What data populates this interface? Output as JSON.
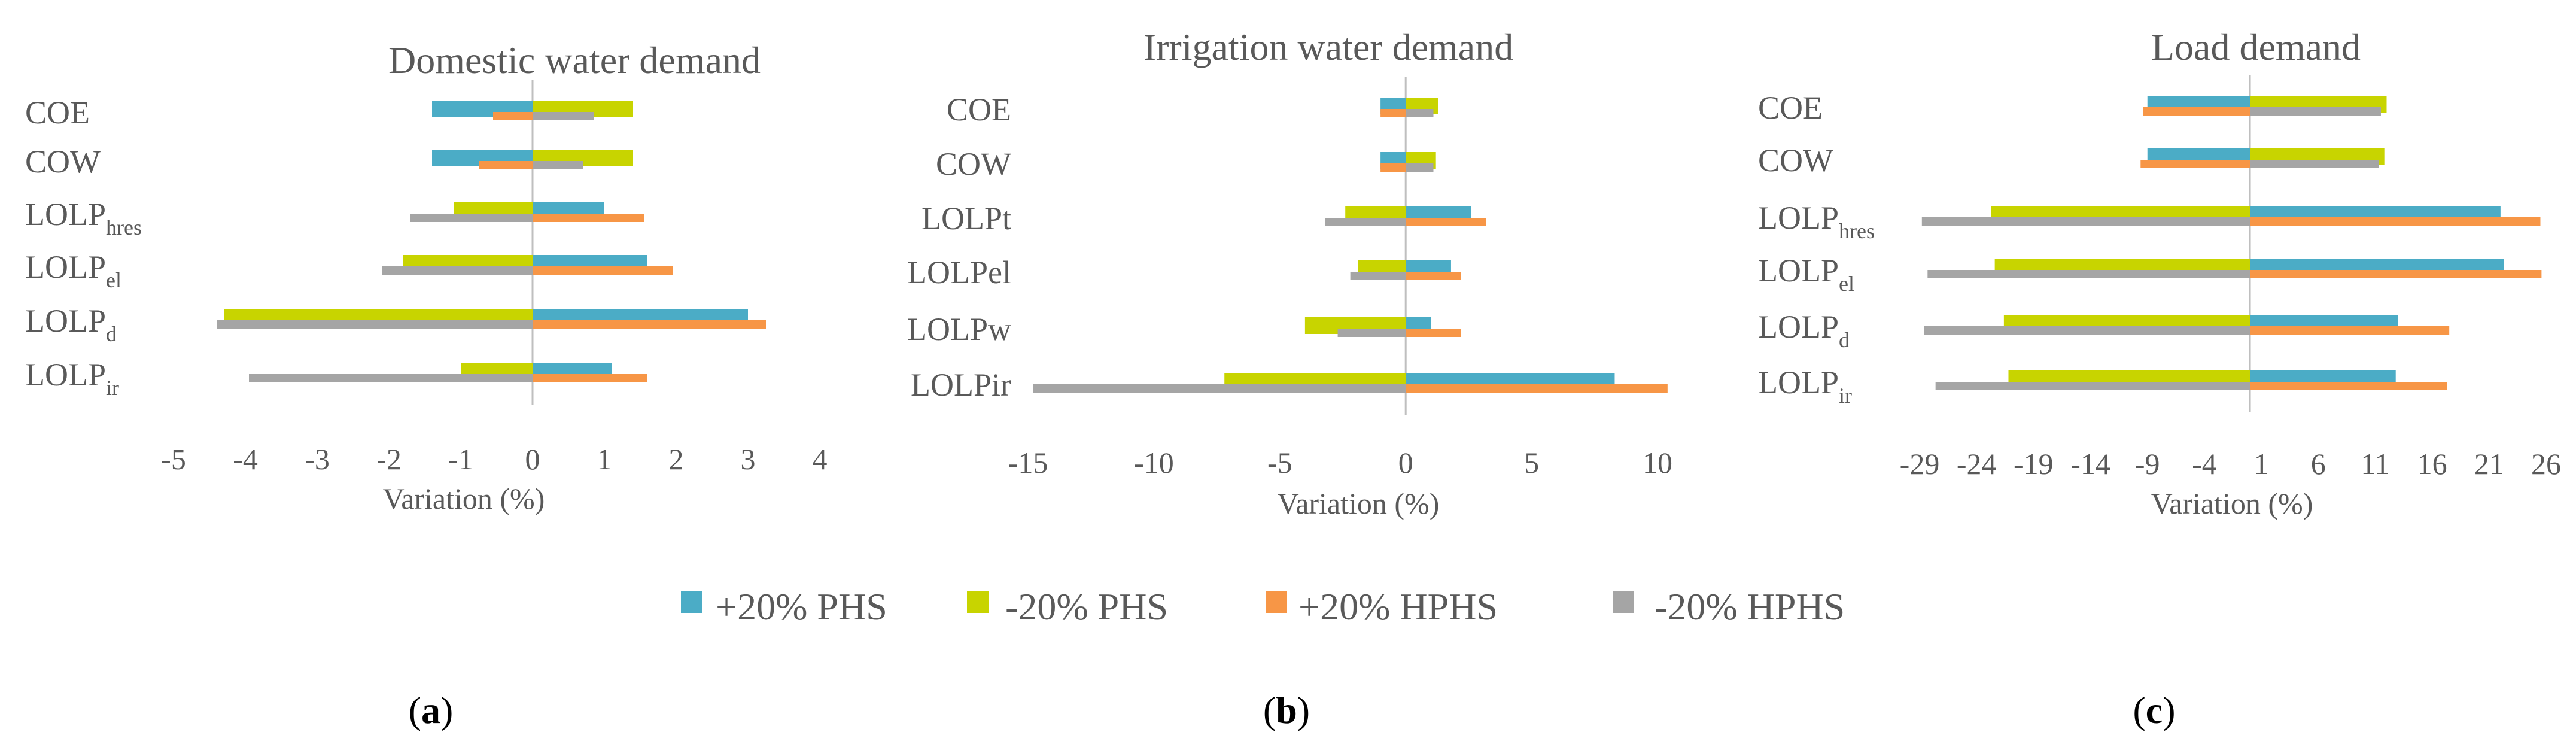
{
  "colors": {
    "plus_phs": "#4bacc6",
    "minus_phs": "#c8d400",
    "plus_hphs": "#f79646",
    "minus_hphs": "#a5a5a5",
    "zero_line": "#bfbfbf",
    "text": "#595959"
  },
  "legend": [
    {
      "key": "plus_phs",
      "label": "+20% PHS"
    },
    {
      "key": "minus_phs",
      "label": "-20% PHS"
    },
    {
      "key": "plus_hphs",
      "label": "+20% HPHS"
    },
    {
      "key": "minus_hphs",
      "label": "-20% HPHS"
    }
  ],
  "chart_data": [
    {
      "type": "bar",
      "orientation": "horizontal",
      "panel": "a",
      "title": "Domestic water demand",
      "xlabel": "Variation (%)",
      "xlim": [
        -5,
        4
      ],
      "ticks": [
        "-5",
        "-4",
        "-3",
        "-2",
        "-1",
        "0",
        "1",
        "2",
        "3",
        "4"
      ],
      "categories": [
        {
          "main": "COE",
          "sub": ""
        },
        {
          "main": "COW",
          "sub": ""
        },
        {
          "main": "LOLP",
          "sub": "hres"
        },
        {
          "main": "LOLP",
          "sub": "el"
        },
        {
          "main": "LOLP",
          "sub": "d"
        },
        {
          "main": "LOLP",
          "sub": "ir"
        }
      ],
      "series": [
        {
          "key": "plus_phs",
          "values": [
            -1.4,
            -1.4,
            1.0,
            1.6,
            3.0,
            1.1
          ]
        },
        {
          "key": "minus_phs",
          "values": [
            1.4,
            1.4,
            -1.1,
            -1.8,
            -4.3,
            -1.0
          ]
        },
        {
          "key": "plus_hphs",
          "values": [
            -0.55,
            -0.75,
            1.55,
            1.95,
            3.25,
            1.6
          ]
        },
        {
          "key": "minus_hphs",
          "values": [
            0.85,
            0.7,
            -1.7,
            -2.1,
            -4.4,
            -3.95
          ]
        }
      ]
    },
    {
      "type": "bar",
      "orientation": "horizontal",
      "panel": "b",
      "title": "Irrigation water demand",
      "xlabel": "Variation (%)",
      "xlim": [
        -15,
        10
      ],
      "ticks": [
        "-15",
        "-10",
        "-5",
        "0",
        "5",
        "10"
      ],
      "categories": [
        {
          "main": "COE",
          "sub": ""
        },
        {
          "main": "COW",
          "sub": ""
        },
        {
          "main": "LOLPt",
          "sub": ""
        },
        {
          "main": "LOLPel",
          "sub": ""
        },
        {
          "main": "LOLPw",
          "sub": ""
        },
        {
          "main": "LOLPir",
          "sub": ""
        }
      ],
      "series": [
        {
          "key": "plus_phs",
          "values": [
            -1.0,
            -1.0,
            2.6,
            1.8,
            1.0,
            8.3
          ]
        },
        {
          "key": "minus_phs",
          "values": [
            1.3,
            1.2,
            -2.4,
            -1.9,
            -4.0,
            -7.2
          ]
        },
        {
          "key": "plus_hphs",
          "values": [
            -1.0,
            -1.0,
            3.2,
            2.2,
            2.2,
            10.4
          ]
        },
        {
          "key": "minus_hphs",
          "values": [
            1.1,
            1.1,
            -3.2,
            -2.2,
            -2.7,
            -14.8
          ]
        }
      ]
    },
    {
      "type": "bar",
      "orientation": "horizontal",
      "panel": "c",
      "title": "Load demand",
      "xlabel": "Variation (%)",
      "xlim": [
        -29,
        26
      ],
      "ticks": [
        "-29",
        "-24",
        "-19",
        "-14",
        "-9",
        "-4",
        "1",
        "6",
        "11",
        "16",
        "21",
        "26"
      ],
      "categories": [
        {
          "main": "COE",
          "sub": ""
        },
        {
          "main": "COW",
          "sub": ""
        },
        {
          "main": "LOLP",
          "sub": "hres"
        },
        {
          "main": "LOLP",
          "sub": "el"
        },
        {
          "main": "LOLP",
          "sub": "d"
        },
        {
          "main": "LOLP",
          "sub": "ir"
        }
      ],
      "series": [
        {
          "key": "plus_phs",
          "values": [
            -9.0,
            -9.0,
            22.0,
            22.3,
            13.0,
            12.8
          ]
        },
        {
          "key": "minus_phs",
          "values": [
            12.0,
            11.8,
            -22.7,
            -22.4,
            -21.6,
            -21.2
          ]
        },
        {
          "key": "plus_hphs",
          "values": [
            -9.4,
            -9.6,
            25.5,
            25.6,
            17.5,
            17.3
          ]
        },
        {
          "key": "minus_hphs",
          "values": [
            11.5,
            11.3,
            -28.8,
            -28.3,
            -28.6,
            -27.6
          ]
        }
      ]
    }
  ],
  "panel_labels": [
    {
      "open": "(",
      "letter": "a",
      "close": ")"
    },
    {
      "open": "(",
      "letter": "b",
      "close": ")"
    },
    {
      "open": "(",
      "letter": "c",
      "close": ")"
    }
  ]
}
